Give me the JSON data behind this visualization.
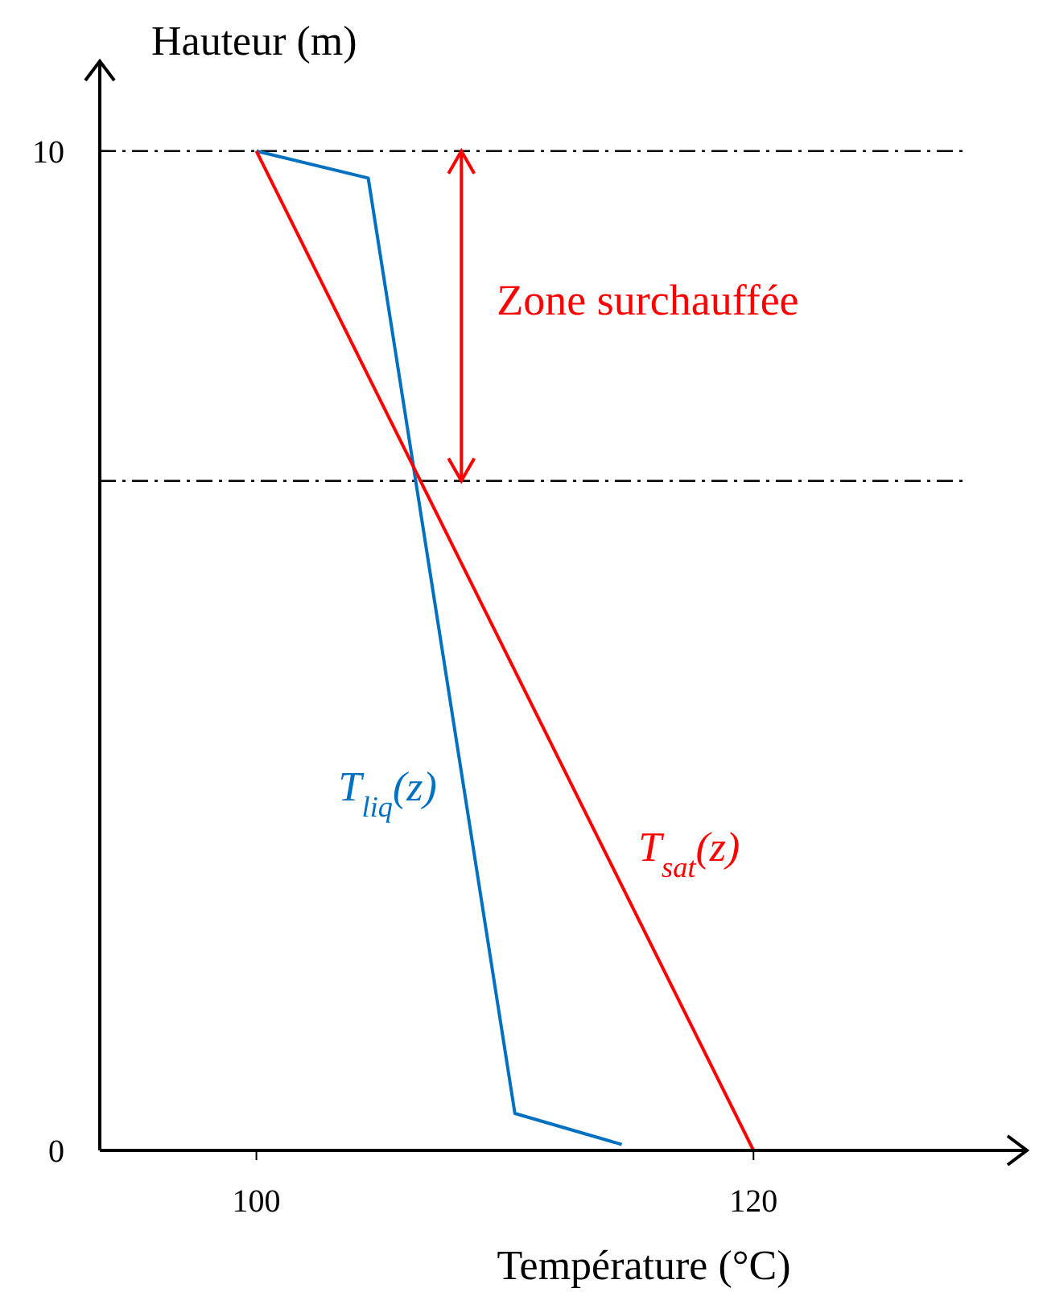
{
  "chart_data": {
    "type": "line",
    "xlabel": "Température (°C)",
    "ylabel": "Hauteur (m)",
    "xlim": [
      93.7,
      131
    ],
    "ylim": [
      0,
      10.9
    ],
    "xticks": [
      100,
      120
    ],
    "yticks": [
      0,
      10
    ],
    "grid": false,
    "marker": "none",
    "line_style": "solid",
    "series": [
      {
        "name": "T$_{liq}$(z)",
        "color": "#0070c0",
        "x": [
          100,
          104.5,
          110.4,
          114.7
        ],
        "values": [
          10,
          9.73,
          0.37,
          0.06
        ]
      },
      {
        "name": "T$_{sat}$(z)",
        "color": "#ff0000",
        "x": [
          100,
          120
        ],
        "values": [
          10,
          0
        ]
      }
    ],
    "ref_lines": [
      {
        "axis": "y",
        "value": 10,
        "color": "#000000",
        "line_style": "dashdot"
      },
      {
        "axis": "y",
        "value": 6.7,
        "color": "#000000",
        "line_style": "dashdot"
      }
    ],
    "annotations": [
      "Zone surchauffée"
    ]
  }
}
